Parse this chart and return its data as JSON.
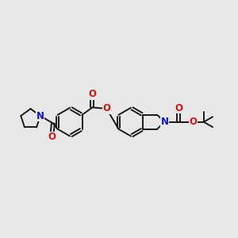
{
  "bg_color": "#e8e8e8",
  "bond_color": "#1a1a1a",
  "bond_width": 1.4,
  "N_color": "#1010dd",
  "O_color": "#dd1010",
  "font_size": 8.5,
  "fig_width": 3.0,
  "fig_height": 3.0,
  "dpi": 100,
  "xlim": [
    0,
    12
  ],
  "ylim": [
    2,
    9
  ]
}
